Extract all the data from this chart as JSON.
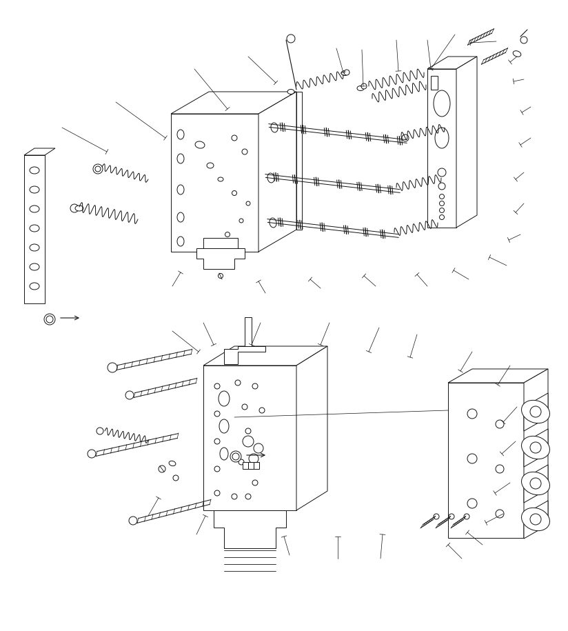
{
  "bg_color": "#ffffff",
  "lc": "#111111",
  "lw": 0.7,
  "figsize": [
    8.24,
    9.15
  ],
  "dpi": 100
}
